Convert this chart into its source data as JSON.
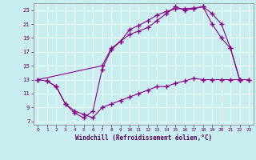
{
  "xlabel": "Windchill (Refroidissement éolien,°C)",
  "bg_color": "#c8eef0",
  "line_color": "#880088",
  "grid_color": "#ffffff",
  "xlim": [
    -0.5,
    23.5
  ],
  "ylim": [
    6.5,
    24.0
  ],
  "xticks": [
    0,
    1,
    2,
    3,
    4,
    5,
    6,
    7,
    8,
    9,
    10,
    11,
    12,
    13,
    14,
    15,
    16,
    17,
    18,
    19,
    20,
    21,
    22,
    23
  ],
  "yticks": [
    7,
    9,
    11,
    13,
    15,
    17,
    19,
    21,
    23
  ],
  "line1_x": [
    0,
    1,
    2,
    3,
    4,
    5,
    6,
    7,
    8,
    9,
    10,
    11,
    12,
    13,
    14,
    15,
    16,
    17,
    18,
    19,
    20,
    21,
    22
  ],
  "line1_y": [
    13,
    12.8,
    12.0,
    9.5,
    8.2,
    7.5,
    8.5,
    14.5,
    17.3,
    18.5,
    20.2,
    20.8,
    21.5,
    22.3,
    22.8,
    23.2,
    23.2,
    23.3,
    23.5,
    21.0,
    19.0,
    17.5,
    13.0
  ],
  "line2_x": [
    1,
    2,
    3,
    4,
    5,
    6,
    7,
    8,
    9,
    10,
    11,
    12,
    13,
    14,
    15,
    16,
    17,
    18,
    19,
    20,
    21,
    22,
    23
  ],
  "line2_y": [
    12.8,
    12.0,
    9.5,
    8.5,
    8.0,
    7.5,
    9.0,
    9.5,
    10.0,
    10.5,
    11.0,
    11.5,
    12.0,
    12.0,
    12.5,
    12.8,
    13.2,
    13.0,
    13.0,
    13.0,
    13.0,
    13.0,
    13.0
  ],
  "line3_x": [
    0,
    7,
    8,
    9,
    10,
    11,
    12,
    13,
    14,
    15,
    16,
    17,
    18,
    19,
    20,
    21,
    22,
    23
  ],
  "line3_y": [
    13.0,
    15.0,
    17.5,
    18.5,
    19.5,
    20.0,
    20.5,
    21.5,
    22.5,
    23.5,
    23.0,
    23.2,
    23.5,
    22.5,
    21.0,
    17.5,
    13.0,
    13.0
  ]
}
